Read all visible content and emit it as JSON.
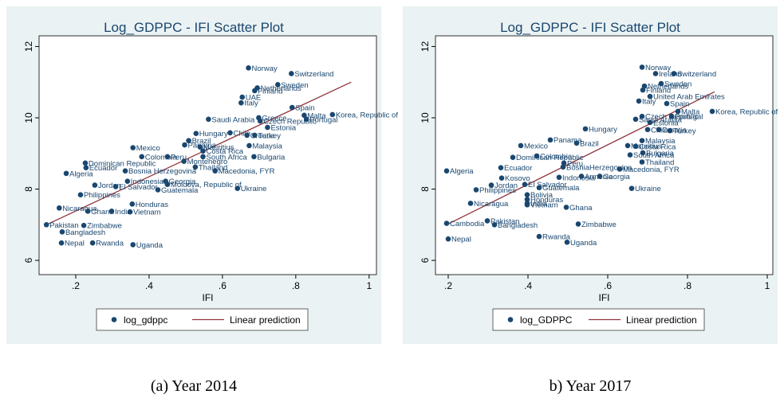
{
  "chart_data": [
    {
      "type": "scatter",
      "title": "Log_GDPPC - IFI Scatter Plot",
      "x_label": "IFI",
      "caption": "(a) Year 2014",
      "xlim": [
        0.1,
        1.02
      ],
      "ylim": [
        5.6,
        12.3
      ],
      "xticks": [
        {
          "value": 0.2,
          "label": ".2"
        },
        {
          "value": 0.4,
          "label": ".4"
        },
        {
          "value": 0.6,
          "label": ".6"
        },
        {
          "value": 0.8,
          "label": ".8"
        },
        1
      ],
      "yticks": [
        6,
        8,
        10,
        12
      ],
      "series": [
        {
          "name": "log_gdppc",
          "color": "#1a476f",
          "point_labels": [
            "Norway",
            "Switzerland",
            "Sweden",
            "Netherlands",
            "Finland",
            "UAE",
            "Italy",
            "Spain",
            "Malta",
            "Portugal",
            "Korea, Republic of",
            "Greece",
            "Saudi Arabia",
            "Czech Republic",
            "Estonia",
            "Chile",
            "Croatia",
            "Turkey",
            "Hungary",
            "Brazil",
            "Panama",
            "Malaysia",
            "Mauritius",
            "Costa Rica",
            "Mexico",
            "Colombia",
            "Peru",
            "South Africa",
            "Bulgaria",
            "Dominican Republic",
            "Montenegro",
            "Ecuador",
            "Thailand",
            "Bosnia Herzegovina",
            "Macedonia, FYR",
            "Algeria",
            "Jordan",
            "Indonesia",
            "Georgia",
            "Moldova, Republic of",
            "El Salvador",
            "Guatemala",
            "Ukraine",
            "Philippines",
            "Nicaragua",
            "Honduras",
            "Ghana",
            "India",
            "Vietnam",
            "Pakistan",
            "Zimbabwe",
            "Bangladesh",
            "Nepal",
            "Rwanda",
            "Uganda"
          ],
          "x": [
            0.671,
            0.788,
            0.751,
            0.695,
            0.688,
            0.654,
            0.651,
            0.79,
            0.823,
            0.829,
            0.9,
            0.699,
            0.562,
            0.703,
            0.723,
            0.621,
            0.667,
            0.688,
            0.528,
            0.508,
            0.497,
            0.673,
            0.539,
            0.547,
            0.356,
            0.38,
            0.45,
            0.547,
            0.686,
            0.226,
            0.495,
            0.228,
            0.526,
            0.335,
            0.58,
            0.174,
            0.252,
            0.341,
            0.445,
            0.45,
            0.309,
            0.424,
            0.641,
            0.213,
            0.155,
            0.354,
            0.233,
            0.298,
            0.348,
            0.12,
            0.222,
            0.163,
            0.161,
            0.246,
            0.356
          ],
          "values": [
            11.4,
            11.24,
            10.93,
            10.84,
            10.76,
            10.58,
            10.42,
            10.29,
            10.07,
            9.96,
            10.09,
            10.0,
            9.96,
            9.91,
            9.73,
            9.58,
            9.51,
            9.51,
            9.56,
            9.36,
            9.24,
            9.22,
            9.18,
            9.07,
            9.16,
            8.91,
            8.91,
            8.91,
            8.91,
            8.73,
            8.78,
            8.6,
            8.62,
            8.51,
            8.51,
            8.44,
            8.11,
            8.22,
            8.22,
            8.13,
            8.07,
            7.98,
            8.02,
            7.84,
            7.47,
            7.58,
            7.38,
            7.38,
            7.36,
            7.0,
            6.98,
            6.8,
            6.49,
            6.49,
            6.44
          ]
        },
        {
          "name": "Linear prediction",
          "color": "#90353b",
          "x": [
            0.12,
            0.951
          ],
          "values": [
            7.0,
            11.0
          ]
        }
      ]
    },
    {
      "type": "scatter",
      "title": "Log_GDPPC - IFI Scatter Plot",
      "x_label": "IFI",
      "caption": "b) Year 2017",
      "xlim": [
        0.168,
        1.014
      ],
      "ylim": [
        5.6,
        12.3
      ],
      "xticks": [
        {
          "value": 0.2,
          "label": ".2"
        },
        {
          "value": 0.4,
          "label": ".4"
        },
        {
          "value": 0.6,
          "label": ".6"
        },
        {
          "value": 0.8,
          "label": ".8"
        },
        1
      ],
      "yticks": [
        6,
        8,
        10,
        12
      ],
      "series": [
        {
          "name": "log_GDPPC",
          "color": "#1a476f",
          "point_labels": [
            "Norway",
            "Ireland",
            "Switzerland",
            "Sweden",
            "Netherlands",
            "Finland",
            "United Arab Emirates",
            "Italy",
            "Spain",
            "Malta",
            "Portugal",
            "Korea, Republic of",
            "Czech Republic",
            "Saudi Arabia",
            "Estonia",
            "Chile",
            "Croatia",
            "Turkey",
            "Hungary",
            "Panama",
            "Brazil",
            "Malaysia",
            "Mauritius",
            "Costa Rica",
            "Mexico",
            "Bulgaria",
            "South Africa",
            "Dominican Republic",
            "Colombia",
            "Peru",
            "Thailand",
            "Ecuador",
            "BosniaHerzegovina",
            "Macedonia, FYR",
            "Algeria",
            "Indonesia",
            "Armenia",
            "Georgia",
            "Kosovo",
            "Jordan",
            "El Salvador",
            "Guatemala",
            "Ukraine",
            "Philippines",
            "Bolivia",
            "Honduras",
            "Nicaragua",
            "India",
            "Vietnam",
            "Ghana",
            "Cambodia",
            "Pakistan",
            "Bangladesh",
            "Zimbabwe",
            "Nepal",
            "Rwanda",
            "Uganda"
          ],
          "x": [
            0.686,
            0.72,
            0.766,
            0.734,
            0.692,
            0.688,
            0.706,
            0.678,
            0.748,
            0.776,
            0.76,
            0.862,
            0.686,
            0.67,
            0.706,
            0.7,
            0.728,
            0.756,
            0.544,
            0.456,
            0.522,
            0.686,
            0.65,
            0.67,
            0.382,
            0.688,
            0.656,
            0.362,
            0.422,
            0.49,
            0.686,
            0.332,
            0.488,
            0.63,
            0.196,
            0.478,
            0.534,
            0.58,
            0.334,
            0.308,
            0.392,
            0.428,
            0.66,
            0.27,
            0.398,
            0.398,
            0.256,
            0.398,
            0.398,
            0.496,
            0.196,
            0.298,
            0.316,
            0.526,
            0.2,
            0.428,
            0.498
          ],
          "values": [
            11.42,
            11.24,
            11.24,
            10.96,
            10.89,
            10.78,
            10.6,
            10.47,
            10.4,
            10.18,
            10.04,
            10.18,
            10.04,
            9.96,
            9.87,
            9.67,
            9.67,
            9.64,
            9.69,
            9.38,
            9.29,
            9.36,
            9.22,
            9.2,
            9.22,
            9.02,
            8.96,
            8.89,
            8.93,
            8.73,
            8.76,
            8.6,
            8.62,
            8.56,
            8.51,
            8.33,
            8.36,
            8.36,
            8.31,
            8.11,
            8.13,
            8.04,
            8.02,
            7.98,
            7.84,
            7.71,
            7.6,
            7.6,
            7.56,
            7.49,
            7.04,
            7.11,
            7.0,
            7.02,
            6.6,
            6.67,
            6.51
          ]
        },
        {
          "name": "Linear prediction",
          "color": "#90353b",
          "x": [
            0.196,
            0.868
          ],
          "values": [
            7.0,
            10.73
          ]
        }
      ]
    }
  ]
}
